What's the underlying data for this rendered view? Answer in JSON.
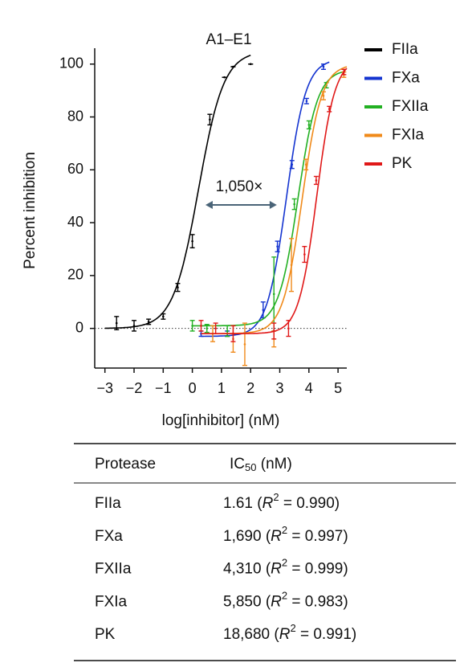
{
  "chart_data": {
    "type": "dose_response",
    "title": "A1–E1",
    "x_label": "log[inhibitor] (nM)",
    "y_label": "Percent inhibition",
    "annotation": "1,050×",
    "xlim": [
      -3.35,
      5.3
    ],
    "ylim": [
      -15,
      106
    ],
    "xticks": [
      {
        "value": -3,
        "label": "−3"
      },
      {
        "value": -2,
        "label": "−2"
      },
      {
        "value": -1,
        "label": "−1"
      },
      0,
      1,
      2,
      3,
      4,
      5
    ],
    "yticks": [
      0,
      20,
      40,
      60,
      80,
      100
    ],
    "series": [
      {
        "name": "FIIa",
        "color": "#000000",
        "x": [
          -2.6,
          -2.0,
          -1.5,
          -1.0,
          -0.5,
          0.0,
          0.6,
          1.1,
          1.4,
          2.0
        ],
        "values": [
          2,
          1,
          2.5,
          4.5,
          15.5,
          33,
          79,
          95,
          99,
          100
        ],
        "errors": [
          2.5,
          2,
          1,
          1,
          1.5,
          2.5,
          2,
          0,
          0,
          0
        ],
        "fit": {
          "log_ic50": 0.21,
          "hill": 1.0,
          "bottom": 0,
          "top": 105,
          "from": -3.0,
          "to": 2.0
        }
      },
      {
        "name": "FXa",
        "color": "#1434d0",
        "x": [
          0.3,
          1.2,
          2.43,
          2.92,
          3.42,
          3.92,
          4.5
        ],
        "values": [
          -2,
          -2,
          7,
          31,
          62,
          86,
          99
        ],
        "errors": [
          1,
          1,
          3,
          2,
          1.5,
          1,
          1
        ],
        "fit": {
          "log_ic50": 3.23,
          "hill": 1.3,
          "bottom": -3,
          "top": 102,
          "from": 0.3,
          "to": 4.7
        }
      },
      {
        "name": "FXIIa",
        "color": "#22b022",
        "x": [
          0.0,
          0.5,
          1.2,
          2.8,
          3.5,
          4.0,
          4.6
        ],
        "values": [
          1,
          0,
          -1,
          13,
          47,
          77,
          92
        ],
        "errors": [
          2,
          1.5,
          2,
          14,
          2,
          1.5,
          1
        ],
        "fit": {
          "log_ic50": 3.63,
          "hill": 1.3,
          "bottom": 1,
          "top": 98,
          "from": 0.0,
          "to": 5.2
        }
      },
      {
        "name": "FXIa",
        "color": "#f08a1a",
        "x": [
          0.7,
          1.4,
          1.8,
          2.8,
          3.4,
          3.9,
          4.5,
          5.2
        ],
        "values": [
          -2,
          -4,
          -6,
          -4,
          24,
          62,
          88,
          96
        ],
        "errors": [
          3,
          5,
          8,
          3,
          10,
          2,
          1.5,
          1
        ],
        "fit": {
          "log_ic50": 3.77,
          "hill": 1.3,
          "bottom": -2,
          "top": 100,
          "from": 0.3,
          "to": 5.3
        }
      },
      {
        "name": "PK",
        "color": "#e01818",
        "x": [
          0.3,
          0.8,
          1.4,
          2.8,
          3.3,
          3.85,
          4.25,
          4.7,
          5.2
        ],
        "values": [
          1,
          0,
          -2,
          -1,
          0,
          28,
          56,
          83,
          97
        ],
        "errors": [
          2,
          2,
          3,
          3,
          3,
          3,
          1.5,
          1,
          1
        ],
        "fit": {
          "log_ic50": 4.27,
          "hill": 1.4,
          "bottom": -2,
          "top": 102,
          "from": 0.3,
          "to": 5.3
        }
      }
    ]
  },
  "table": {
    "header": {
      "protease": "Protease",
      "ic": "IC",
      "ic_sub": "50",
      "ic_suffix": " (nM)"
    },
    "rows": [
      {
        "protease": "FIIa",
        "prefix": "1.61 (",
        "r": "R",
        "sup": "2",
        "suffix": " = 0.990)"
      },
      {
        "protease": "FXa",
        "prefix": "1,690 (",
        "r": "R",
        "sup": "2",
        "suffix": " = 0.997)"
      },
      {
        "protease": "FXIIa",
        "prefix": "4,310 (",
        "r": "R",
        "sup": "2",
        "suffix": " = 0.999)"
      },
      {
        "protease": "FXIa",
        "prefix": "5,850 (",
        "r": "R",
        "sup": "2",
        "suffix": " = 0.983)"
      },
      {
        "protease": "PK",
        "prefix": "18,680 (",
        "r": "R",
        "sup": "2",
        "suffix": " = 0.991)"
      }
    ]
  }
}
